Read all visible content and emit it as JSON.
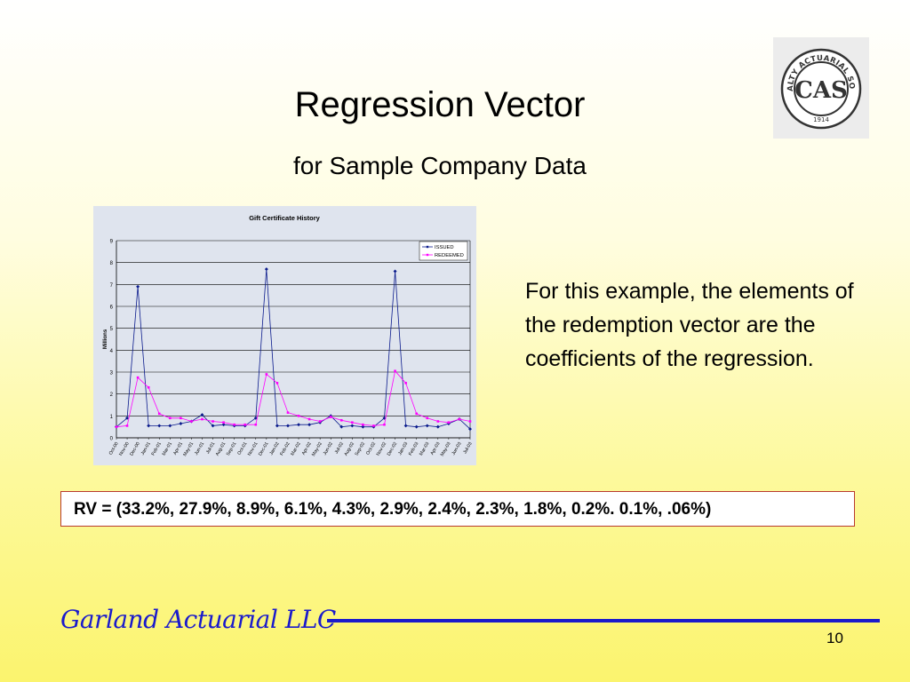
{
  "slide": {
    "title": "Regression Vector",
    "subtitle": "for Sample Company Data",
    "body_text": "For this example, the elements of the redemption vector are the coefficients of the regression.",
    "rv_text": "RV = (33.2%, 27.9%, 8.9%, 6.1%, 4.3%, 2.9%, 2.4%, 2.3%, 1.8%, 0.2%. 0.1%, .06%)",
    "footer": "Garland Actuarial LLC",
    "page_number": "10"
  },
  "logo": {
    "ring_text": "CASUALTY ACTUARIAL SOCIETY",
    "monogram": "CAS",
    "year": "1914"
  },
  "colors": {
    "issued": "#0a1a8c",
    "redeemed": "#ff00ff",
    "footer": "#1a1acc",
    "rv_border": "#b83a2e",
    "chart_bg": "#dfe4ee"
  },
  "chart_data": {
    "type": "line",
    "title": "Gift Certificate History",
    "ylabel": "Millions",
    "xlabel": "",
    "ylim": [
      0,
      9
    ],
    "yticks": [
      "0",
      "1",
      "2",
      "3",
      "4",
      "5",
      "6",
      "7",
      "8",
      "9"
    ],
    "grid": true,
    "legend_position": "top-right",
    "categories": [
      "Oct-00",
      "Nov-00",
      "Dec-00",
      "Jan-01",
      "Feb-01",
      "Mar-01",
      "Apr-01",
      "May-01",
      "Jun-01",
      "Jul-01",
      "Aug-01",
      "Sep-01",
      "Oct-01",
      "Nov-01",
      "Dec-01",
      "Jan-02",
      "Feb-02",
      "Mar-02",
      "Apr-02",
      "May-02",
      "Jun-02",
      "Jul-02",
      "Aug-02",
      "Sep-02",
      "Oct-02",
      "Nov-02",
      "Dec-02",
      "Jan-03",
      "Feb-03",
      "Mar-03",
      "Apr-03",
      "May-03",
      "Jun-03",
      "Jul-03"
    ],
    "series": [
      {
        "name": "ISSUED",
        "values": [
          0.5,
          0.9,
          6.9,
          0.55,
          0.55,
          0.55,
          0.65,
          0.75,
          1.05,
          0.55,
          0.6,
          0.55,
          0.55,
          0.9,
          7.7,
          0.55,
          0.55,
          0.6,
          0.6,
          0.7,
          1.0,
          0.5,
          0.55,
          0.5,
          0.5,
          0.9,
          7.6,
          0.55,
          0.5,
          0.55,
          0.5,
          0.65,
          0.85,
          0.4
        ]
      },
      {
        "name": "REDEEMED",
        "values": [
          0.5,
          0.55,
          2.75,
          2.3,
          1.1,
          0.9,
          0.9,
          0.75,
          0.85,
          0.75,
          0.7,
          0.6,
          0.6,
          0.6,
          2.9,
          2.5,
          1.15,
          1.0,
          0.85,
          0.75,
          0.95,
          0.8,
          0.7,
          0.6,
          0.55,
          0.6,
          3.05,
          2.5,
          1.1,
          0.9,
          0.75,
          0.7,
          0.85,
          0.75
        ]
      }
    ]
  }
}
